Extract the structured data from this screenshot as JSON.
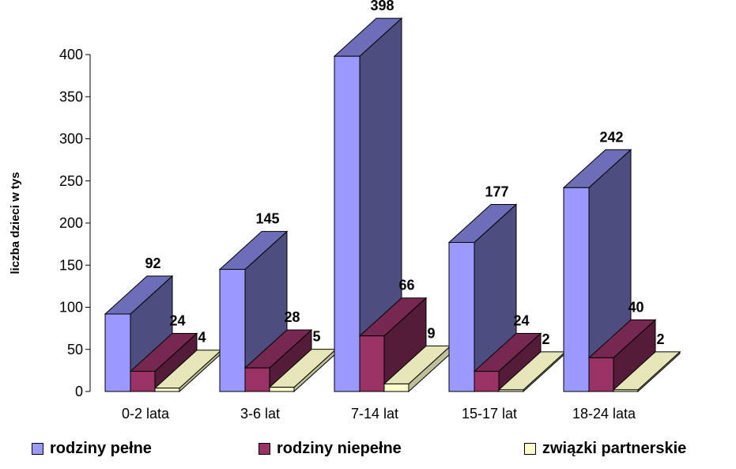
{
  "chart_data": {
    "type": "bar",
    "ylabel": "liczba dzieci w tys",
    "xlabel": "",
    "ylim": [
      0,
      400
    ],
    "yticks": [
      0,
      50,
      100,
      150,
      200,
      250,
      300,
      350,
      400
    ],
    "categories": [
      "0-2 lata",
      "3-6 lat",
      "7-14 lat",
      "15-17 lat",
      "18-24 lata"
    ],
    "series": [
      {
        "name": "rodziny pełne",
        "values": [
          92,
          145,
          398,
          177,
          242
        ],
        "color": "#9999ff"
      },
      {
        "name": "rodziny niepełne",
        "values": [
          24,
          28,
          66,
          24,
          40
        ],
        "color": "#993366"
      },
      {
        "name": "związki partnerskie",
        "values": [
          4,
          5,
          9,
          2,
          2
        ],
        "color": "#ffffcc"
      }
    ],
    "legend_position": "bottom",
    "grid": false,
    "style": "3d"
  }
}
